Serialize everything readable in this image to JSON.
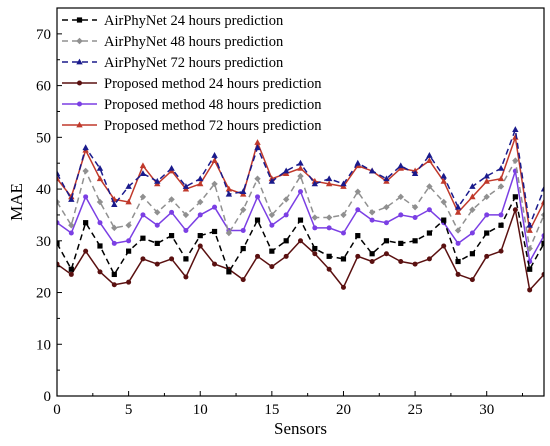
{
  "chart_data": {
    "type": "line",
    "xlabel": "Sensors",
    "ylabel": "MAE",
    "xlim": [
      0,
      34
    ],
    "ylim": [
      0,
      75
    ],
    "xticks": [
      0,
      5,
      10,
      15,
      20,
      25,
      30
    ],
    "yticks": [
      0,
      10,
      20,
      30,
      40,
      50,
      60,
      70
    ],
    "grid": false,
    "legend_position": "top-left",
    "x": [
      0,
      1,
      2,
      3,
      4,
      5,
      6,
      7,
      8,
      9,
      10,
      11,
      12,
      13,
      14,
      15,
      16,
      17,
      18,
      19,
      20,
      21,
      22,
      23,
      24,
      25,
      26,
      27,
      28,
      29,
      30,
      31,
      32,
      33,
      34
    ],
    "series": [
      {
        "name": "AirPhyNet 24 hours prediction",
        "color": "#000000",
        "dash": "dashed",
        "marker": "square",
        "values": [
          29.5,
          24.5,
          33.5,
          29.0,
          23.5,
          28.0,
          30.5,
          29.5,
          31.0,
          26.5,
          31.0,
          31.8,
          24.0,
          28.5,
          34.0,
          28.0,
          30.0,
          34.0,
          28.5,
          27.0,
          26.5,
          31.0,
          27.5,
          30.0,
          29.5,
          30.0,
          31.5,
          34.0,
          26.0,
          27.5,
          31.5,
          33.0,
          38.5,
          24.5,
          29.5
        ]
      },
      {
        "name": "AirPhyNet 48 hours prediction",
        "color": "#909090",
        "dash": "dashed",
        "marker": "diamond",
        "values": [
          37.5,
          33.0,
          43.5,
          37.5,
          32.5,
          33.0,
          38.5,
          35.5,
          38.0,
          35.0,
          37.5,
          41.0,
          31.5,
          36.0,
          42.0,
          35.0,
          38.0,
          42.5,
          34.5,
          34.5,
          35.0,
          39.5,
          35.5,
          36.5,
          38.5,
          36.5,
          40.5,
          37.5,
          32.0,
          36.0,
          38.5,
          40.5,
          45.5,
          28.5,
          35.0
        ]
      },
      {
        "name": "AirPhyNet 72 hours prediction",
        "color": "#1a1a8c",
        "dash": "dashed",
        "marker": "triangle-up",
        "values": [
          43.0,
          38.0,
          48.0,
          44.0,
          37.0,
          40.5,
          43.0,
          41.5,
          44.0,
          40.5,
          42.0,
          46.5,
          39.0,
          39.5,
          48.0,
          41.5,
          43.5,
          45.0,
          41.0,
          42.0,
          41.0,
          45.0,
          43.5,
          42.0,
          44.5,
          43.0,
          46.5,
          42.5,
          36.5,
          40.5,
          42.5,
          44.0,
          51.5,
          33.0,
          40.0
        ]
      },
      {
        "name": "Proposed method 24 hours prediction",
        "color": "#5a1010",
        "dash": "solid",
        "marker": "circle",
        "values": [
          25.5,
          23.5,
          28.0,
          24.0,
          21.5,
          22.0,
          26.5,
          25.5,
          26.5,
          23.0,
          29.0,
          25.5,
          24.5,
          22.5,
          27.0,
          25.0,
          27.0,
          30.0,
          27.5,
          24.5,
          21.0,
          27.0,
          26.0,
          27.5,
          26.0,
          25.5,
          26.5,
          29.0,
          23.5,
          22.5,
          27.0,
          28.0,
          36.0,
          20.5,
          23.5
        ]
      },
      {
        "name": "Proposed method 48 hours prediction",
        "color": "#7b3fe4",
        "dash": "solid",
        "marker": "circle",
        "values": [
          33.5,
          31.5,
          38.5,
          33.5,
          29.5,
          30.0,
          35.0,
          33.0,
          35.5,
          32.0,
          35.0,
          36.5,
          32.0,
          32.0,
          38.5,
          33.0,
          35.0,
          39.5,
          32.5,
          32.5,
          31.5,
          36.0,
          34.0,
          33.5,
          35.0,
          34.5,
          36.0,
          33.5,
          29.5,
          31.5,
          35.0,
          35.0,
          43.5,
          26.0,
          31.0
        ]
      },
      {
        "name": "Proposed method 72 hours prediction",
        "color": "#c0392b",
        "dash": "solid",
        "marker": "triangle-up",
        "values": [
          42.0,
          38.5,
          47.5,
          42.0,
          38.0,
          37.5,
          44.5,
          41.0,
          43.5,
          40.0,
          41.0,
          45.5,
          40.0,
          39.0,
          49.0,
          42.0,
          43.0,
          44.0,
          41.5,
          41.0,
          40.5,
          44.5,
          43.5,
          41.5,
          44.0,
          43.5,
          45.5,
          41.5,
          35.5,
          38.5,
          41.5,
          42.0,
          50.0,
          32.0,
          37.5
        ]
      }
    ]
  }
}
